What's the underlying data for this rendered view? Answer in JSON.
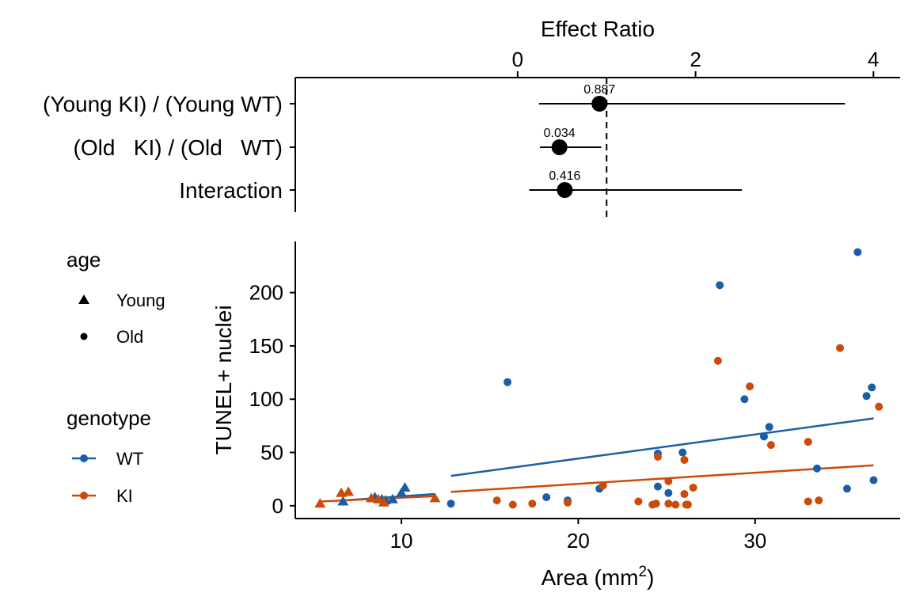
{
  "chart_data": [
    {
      "type": "forest",
      "xlabel": "Effect Ratio",
      "xlim": [
        -2.5,
        4.3
      ],
      "xticks": [
        0,
        2,
        4
      ],
      "reference_line": 1,
      "rows": [
        {
          "label": "(Young KI) / (Young WT)",
          "estimate": 0.92,
          "low": 0.24,
          "high": 3.68,
          "annotation": "0.887"
        },
        {
          "label": "(Old   KI) / (Old   WT)",
          "estimate": 0.47,
          "low": 0.25,
          "high": 0.94,
          "annotation": "0.034"
        },
        {
          "label": "Interaction",
          "estimate": 0.53,
          "low": 0.13,
          "high": 2.52,
          "annotation": "0.416"
        }
      ]
    },
    {
      "type": "scatter",
      "xlabel": "Area (mm",
      "xlabel_sup": "2",
      "xlabel_end": ")",
      "ylabel": "TUNEL+ nuclei",
      "xlim": [
        4,
        38.2
      ],
      "ylim": [
        -12,
        248
      ],
      "xticks": [
        10,
        20,
        30
      ],
      "yticks": [
        0,
        50,
        100,
        150,
        200
      ],
      "colors": {
        "WT": "#1A5FA6",
        "KI": "#CC4A0A"
      },
      "legend": {
        "age": {
          "title": "age",
          "items": [
            {
              "label": "Young",
              "shape": "triangle"
            },
            {
              "label": "Old",
              "shape": "circle"
            }
          ]
        },
        "genotype": {
          "title": "genotype",
          "items": [
            {
              "label": "WT"
            },
            {
              "label": "KI"
            }
          ]
        }
      },
      "series": [
        {
          "name": "WT",
          "age": "Young",
          "shape": "triangle",
          "points": [
            [
              6.7,
              4
            ],
            [
              8.5,
              8
            ],
            [
              8.9,
              6
            ],
            [
              9.1,
              5
            ],
            [
              9.5,
              6
            ],
            [
              10.0,
              12
            ],
            [
              10.2,
              17
            ]
          ]
        },
        {
          "name": "KI",
          "age": "Young",
          "shape": "triangle",
          "points": [
            [
              5.4,
              2
            ],
            [
              6.6,
              12
            ],
            [
              7.0,
              13
            ],
            [
              8.3,
              7
            ],
            [
              8.7,
              6
            ],
            [
              9.0,
              3
            ],
            [
              11.9,
              7
            ]
          ]
        },
        {
          "name": "WT",
          "age": "Old",
          "shape": "circle",
          "points": [
            [
              12.8,
              2
            ],
            [
              16.0,
              116
            ],
            [
              18.2,
              8
            ],
            [
              19.4,
              5
            ],
            [
              21.2,
              16
            ],
            [
              24.5,
              49
            ],
            [
              24.5,
              18
            ],
            [
              25.1,
              12
            ],
            [
              25.9,
              50
            ],
            [
              28.0,
              207
            ],
            [
              29.4,
              100
            ],
            [
              30.5,
              65
            ],
            [
              30.8,
              74
            ],
            [
              33.5,
              35
            ],
            [
              35.2,
              16
            ],
            [
              35.8,
              238
            ],
            [
              36.3,
              103
            ],
            [
              36.6,
              111
            ],
            [
              36.7,
              24
            ]
          ]
        },
        {
          "name": "KI",
          "age": "Old",
          "shape": "circle",
          "points": [
            [
              15.4,
              5
            ],
            [
              16.3,
              1
            ],
            [
              17.4,
              2
            ],
            [
              19.4,
              3
            ],
            [
              21.4,
              19
            ],
            [
              23.4,
              4
            ],
            [
              24.2,
              1
            ],
            [
              24.4,
              2
            ],
            [
              24.5,
              46
            ],
            [
              25.1,
              2
            ],
            [
              25.1,
              23
            ],
            [
              25.5,
              1
            ],
            [
              26.0,
              43
            ],
            [
              26.0,
              11
            ],
            [
              26.1,
              1
            ],
            [
              26.2,
              1
            ],
            [
              26.5,
              17
            ],
            [
              27.9,
              136
            ],
            [
              29.7,
              112
            ],
            [
              30.9,
              57
            ],
            [
              33.0,
              60
            ],
            [
              33.0,
              4
            ],
            [
              33.6,
              5
            ],
            [
              34.8,
              148
            ],
            [
              37.0,
              93
            ]
          ]
        }
      ],
      "fits": [
        {
          "name": "WT",
          "age": "Young",
          "x": [
            6.7,
            11.9
          ],
          "y": [
            5,
            11
          ]
        },
        {
          "name": "KI",
          "age": "Young",
          "x": [
            5.4,
            11.9
          ],
          "y": [
            4,
            9
          ]
        },
        {
          "name": "WT",
          "age": "Old",
          "x": [
            12.8,
            36.7
          ],
          "y": [
            28,
            82
          ]
        },
        {
          "name": "KI",
          "age": "Old",
          "x": [
            12.8,
            36.7
          ],
          "y": [
            13,
            38
          ]
        }
      ]
    }
  ]
}
